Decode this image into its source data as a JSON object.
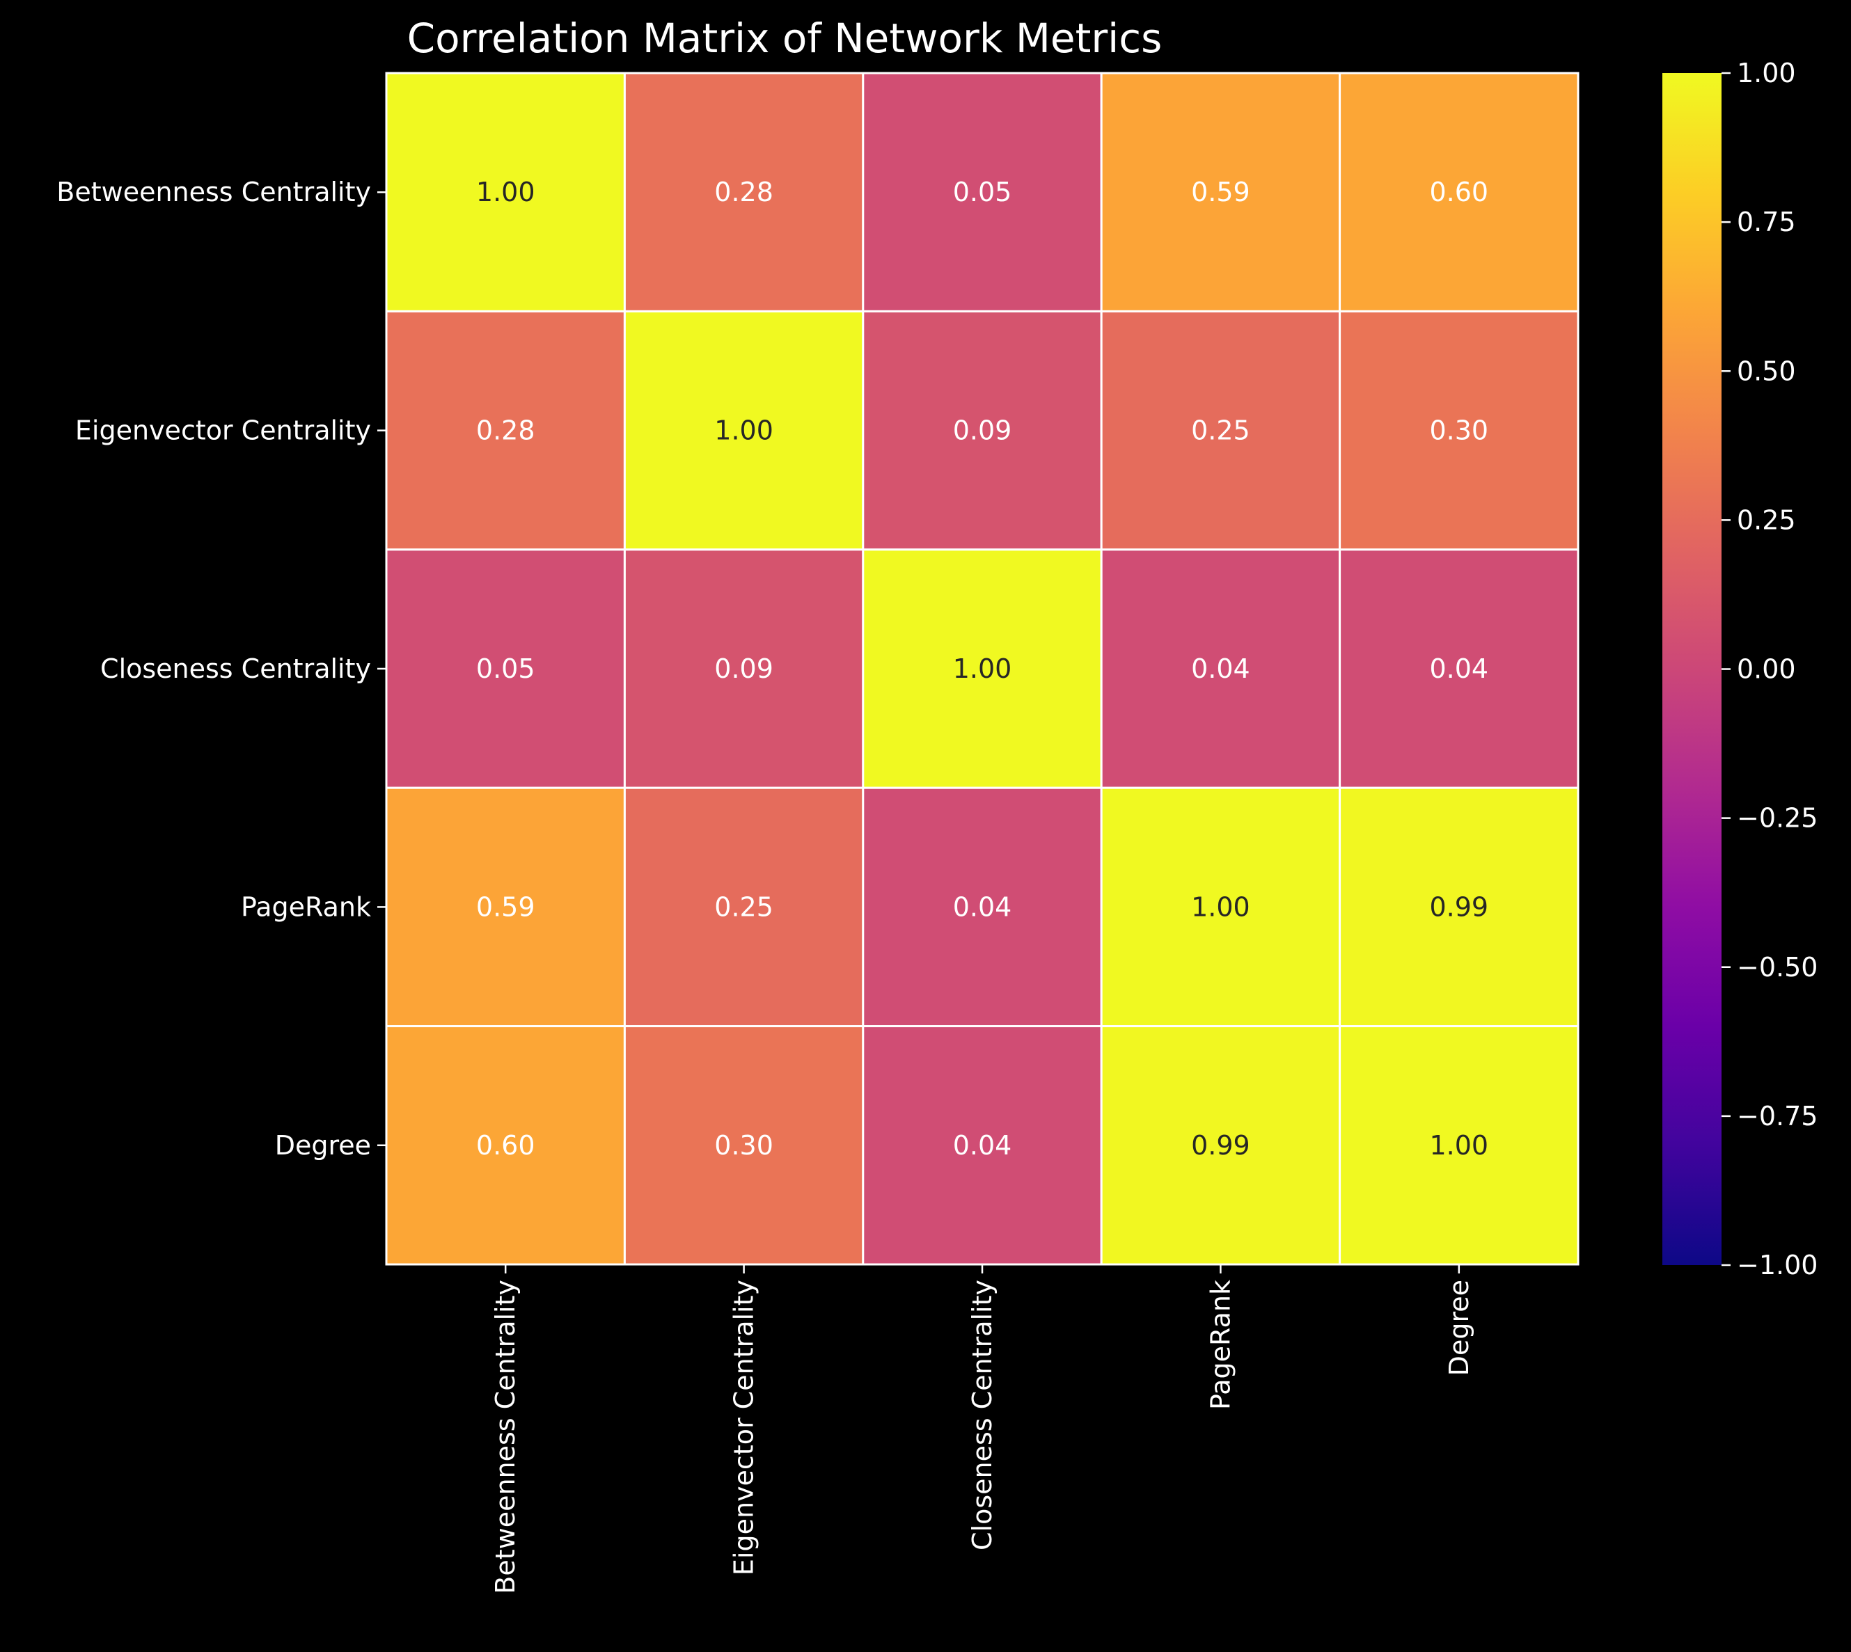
{
  "colors": {
    "background": "#000000",
    "foreground": "#ffffff",
    "cell_border": "#ffffff",
    "dark_text": "#262626",
    "light_text": "#ffffff",
    "colormap": "plasma"
  },
  "chart_data": {
    "type": "heatmap",
    "title": "Correlation Matrix of Network Metrics",
    "xlabel": "",
    "ylabel": "",
    "row_labels": [
      "Betweenness Centrality",
      "Eigenvector Centrality",
      "Closeness Centrality",
      "PageRank",
      "Degree"
    ],
    "col_labels": [
      "Betweenness Centrality",
      "Eigenvector Centrality",
      "Closeness Centrality",
      "PageRank",
      "Degree"
    ],
    "values": [
      [
        1.0,
        0.28,
        0.05,
        0.59,
        0.6
      ],
      [
        0.28,
        1.0,
        0.09,
        0.25,
        0.3
      ],
      [
        0.05,
        0.09,
        1.0,
        0.04,
        0.04
      ],
      [
        0.59,
        0.25,
        0.04,
        1.0,
        0.99
      ],
      [
        0.6,
        0.3,
        0.04,
        0.99,
        1.0
      ]
    ],
    "annotations": [
      [
        "1.00",
        "0.28",
        "0.05",
        "0.59",
        "0.60"
      ],
      [
        "0.28",
        "1.00",
        "0.09",
        "0.25",
        "0.30"
      ],
      [
        "0.05",
        "0.09",
        "1.00",
        "0.04",
        "0.04"
      ],
      [
        "0.59",
        "0.25",
        "0.04",
        "1.00",
        "0.99"
      ],
      [
        "0.60",
        "0.30",
        "0.04",
        "0.99",
        "1.00"
      ]
    ],
    "colorbar": {
      "vmin": -1.0,
      "vmax": 1.0,
      "ticks": [
        1.0,
        0.75,
        0.5,
        0.25,
        0.0,
        -0.25,
        -0.5,
        -0.75,
        -1.0
      ],
      "tick_labels": [
        "1.00",
        "0.75",
        "0.50",
        "0.25",
        "0.00",
        "−0.25",
        "−0.50",
        "−0.75",
        "−1.00"
      ]
    },
    "grid": false,
    "legend": "colorbar-right"
  }
}
